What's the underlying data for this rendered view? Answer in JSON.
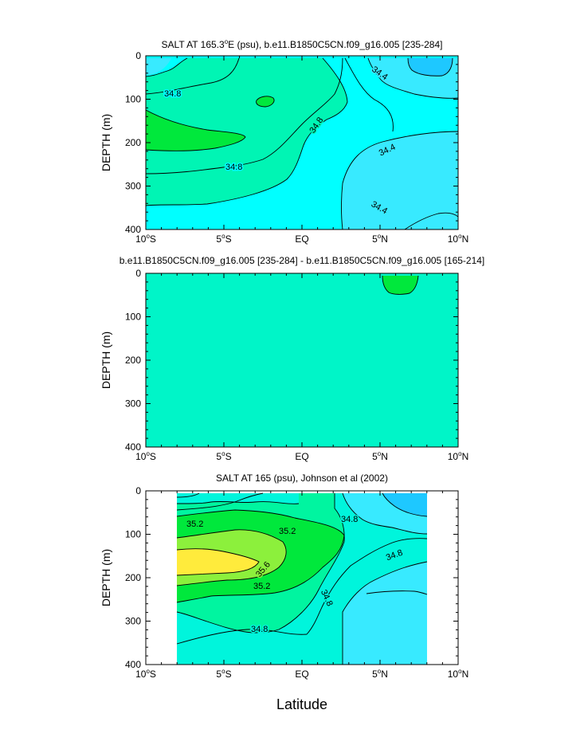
{
  "chart_data": [
    {
      "type": "contour",
      "title": "SALT AT 165.3°E (psu), b.e11.B1850C5CN.f09_g16.005 [235-284]",
      "title_main": "SALT AT 165.3",
      "title_sup": "o",
      "title_rest": "E (psu), b.e11.B1850C5CN.f09_g16.005 [235-284]",
      "xlabel": "",
      "ylabel": "DEPTH (m)",
      "xlim": [
        -10,
        10
      ],
      "ylim": [
        0,
        400
      ],
      "x_ticks": [
        {
          "value": -10,
          "label": "10",
          "sup": "o",
          "suffix": "S"
        },
        {
          "value": -5,
          "label": "5",
          "sup": "o",
          "suffix": "S"
        },
        {
          "value": 0,
          "label": "EQ",
          "sup": "",
          "suffix": ""
        },
        {
          "value": 5,
          "label": "5",
          "sup": "o",
          "suffix": "N"
        },
        {
          "value": 10,
          "label": "10",
          "sup": "o",
          "suffix": "N"
        }
      ],
      "y_ticks": [
        0,
        100,
        200,
        300,
        400
      ],
      "contour_labels": [
        "34.8",
        "34.8",
        "34.8",
        "34.4",
        "34.4",
        "34.4"
      ],
      "fill_colors": {
        "low": "#1ec8ff",
        "mid_low": "#38eaff",
        "base": "#00ffff",
        "mid": "#00f5b4",
        "high": "#00e83c"
      }
    },
    {
      "type": "contour",
      "title": "b.e11.B1850C5CN.f09_g16.005 [235-284] - b.e11.B1850C5CN.f09_g16.005 [165-214]",
      "xlabel": "",
      "ylabel": "DEPTH (m)",
      "xlim": [
        -10,
        10
      ],
      "ylim": [
        0,
        400
      ],
      "x_ticks": [
        {
          "value": -10,
          "label": "10",
          "sup": "o",
          "suffix": "S"
        },
        {
          "value": -5,
          "label": "5",
          "sup": "o",
          "suffix": "S"
        },
        {
          "value": 0,
          "label": "EQ",
          "sup": "",
          "suffix": ""
        },
        {
          "value": 5,
          "label": "5",
          "sup": "o",
          "suffix": "N"
        },
        {
          "value": 10,
          "label": "10",
          "sup": "o",
          "suffix": "N"
        }
      ],
      "y_ticks": [
        0,
        100,
        200,
        300,
        400
      ],
      "contour_labels": [],
      "fill_colors": {
        "base": "#00f5c8",
        "high": "#00e83c"
      }
    },
    {
      "type": "contour",
      "title": "SALT AT 165 (psu), Johnson et al (2002)",
      "xlabel": "Latitude",
      "ylabel": "DEPTH (m)",
      "xlim": [
        -10,
        10
      ],
      "ylim": [
        0,
        400
      ],
      "data_xrange": [
        -8,
        8
      ],
      "x_ticks": [
        {
          "value": -10,
          "label": "10",
          "sup": "o",
          "suffix": "S"
        },
        {
          "value": -5,
          "label": "5",
          "sup": "o",
          "suffix": "S"
        },
        {
          "value": 0,
          "label": "EQ",
          "sup": "",
          "suffix": ""
        },
        {
          "value": 5,
          "label": "5",
          "sup": "o",
          "suffix": "N"
        },
        {
          "value": 10,
          "label": "10",
          "sup": "o",
          "suffix": "N"
        }
      ],
      "y_ticks": [
        0,
        100,
        200,
        300,
        400
      ],
      "contour_labels": [
        "35.2",
        "35.2",
        "35.6",
        "35.2",
        "34.8",
        "34.8",
        "34.8",
        "34.8"
      ],
      "fill_colors": {
        "low": "#1ec8ff",
        "mid_low": "#38eaff",
        "base": "#00f5dc",
        "mid": "#00f5a0",
        "high": "#00e83c",
        "higher": "#8cf03c",
        "highest": "#ffeb3c"
      }
    }
  ]
}
